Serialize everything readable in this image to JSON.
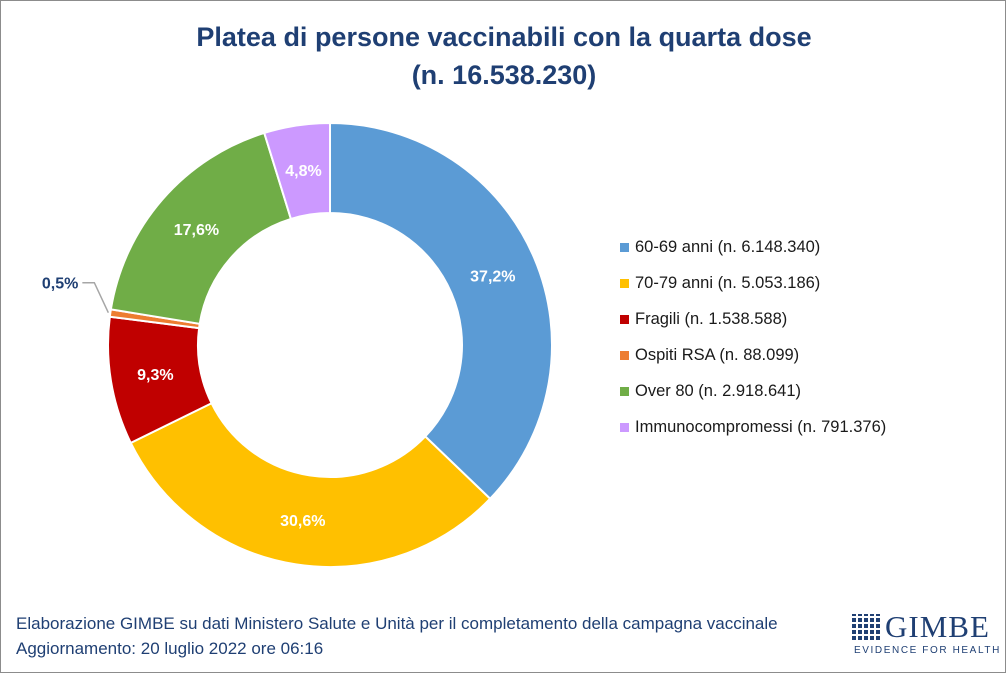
{
  "title": {
    "line1": "Platea di persone vaccinabili con la quarta dose",
    "line2": "(n. 16.538.230)"
  },
  "chart_data": {
    "type": "pie",
    "subtype": "donut",
    "title": "Platea di persone vaccinabili con la quarta dose (n. 16.538.230)",
    "legend_position": "right",
    "slices": [
      {
        "name": "60-69 anni",
        "legend": "60-69 anni (n. 6.148.340)",
        "value": 6148340,
        "label": "37,2%",
        "color": "#5b9bd5",
        "label_color": "#ffffff"
      },
      {
        "name": "70-79 anni",
        "legend": "70-79 anni (n. 5.053.186)",
        "value": 5053186,
        "label": "30,6%",
        "color": "#ffc000",
        "label_color": "#ffffff"
      },
      {
        "name": "Fragili",
        "legend": "Fragili (n. 1.538.588)",
        "value": 1538588,
        "label": "9,3%",
        "color": "#c00000",
        "label_color": "#ffffff"
      },
      {
        "name": "Ospiti RSA",
        "legend": "Ospiti RSA (n. 88.099)",
        "value": 88099,
        "label": "0,5%",
        "color": "#ed7d31",
        "label_color": "#1f3f73"
      },
      {
        "name": "Over 80",
        "legend": "Over 80 (n. 2.918.641)",
        "value": 2918641,
        "label": "17,6%",
        "color": "#70ad47",
        "label_color": "#ffffff"
      },
      {
        "name": "Immunocompromessi",
        "legend": "Immunocompromessi (n. 791.376)",
        "value": 791376,
        "label": "4,8%",
        "color": "#cc99ff",
        "label_color": "#ffffff"
      }
    ]
  },
  "footer": {
    "line1": "Elaborazione GIMBE su dati Ministero Salute e Unità per il completamento della campagna vaccinale",
    "line2": "Aggiornamento: 20 luglio 2022 ore 06:16"
  },
  "logo": {
    "word": "GIMBE",
    "tagline": "EVIDENCE FOR HEALTH"
  }
}
